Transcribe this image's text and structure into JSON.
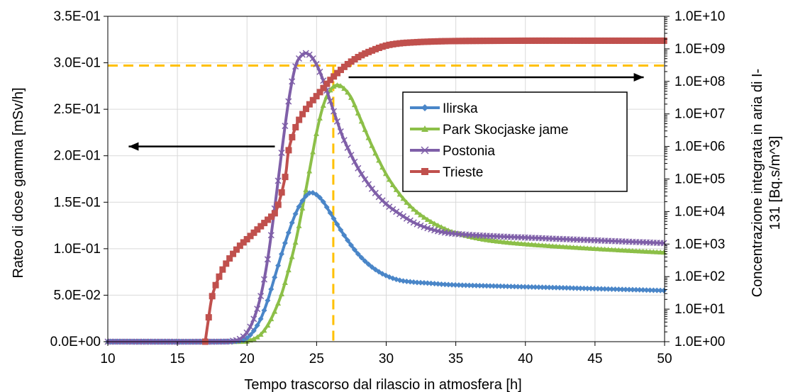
{
  "chart_data": {
    "type": "line",
    "xlabel": "Tempo trascorso dal rilascio in atmosfera [h]",
    "ylabel": "Rateo di dose gamma  [mSv/h]",
    "y2label_line1": "Concentrazione integrata in aria di I-",
    "y2label_line2": "131 [Bq.s/m^3]",
    "xlim": [
      10,
      50
    ],
    "ylim": [
      0,
      0.35
    ],
    "y2lim_log10": [
      0,
      10
    ],
    "y2scale": "log",
    "grid": true,
    "legend_position": "right-middle",
    "x_ticks": [
      "10",
      "15",
      "20",
      "25",
      "30",
      "35",
      "40",
      "45",
      "50"
    ],
    "y_ticks": [
      "0.0E+00",
      "5.0E-02",
      "1.0E-01",
      "1.5E-01",
      "2.0E-01",
      "2.5E-01",
      "3.0E-01",
      "3.5E-01"
    ],
    "y2_ticks": [
      "1.0E+00",
      "1.0E+01",
      "1.0E+02",
      "1.0E+03",
      "1.0E+04",
      "1.0E+05",
      "1.0E+06",
      "1.0E+07",
      "1.0E+08",
      "1.0E+09",
      "1.0E+10"
    ],
    "reference_lines": {
      "hline_y": 0.297,
      "vline_x": 26.2,
      "color": "#ffc000"
    },
    "arrows": [
      {
        "direction": "left",
        "axis": "primary",
        "y": 0.21,
        "x_from": 22,
        "x_to": 11.5
      },
      {
        "direction": "right",
        "axis": "secondary",
        "y": 0.28,
        "x_from": 27.3,
        "x_to": 48.5
      }
    ],
    "series": [
      {
        "name": "Ilirska",
        "axis": "primary",
        "color": "#4a86c8",
        "marker": "diamond",
        "x": [
          10,
          18,
          19.5,
          20,
          20.5,
          21,
          21.5,
          22,
          22.5,
          23,
          23.5,
          24,
          24.5,
          25,
          25.5,
          26,
          27,
          28,
          29,
          30,
          31,
          32,
          33,
          35,
          40,
          45,
          50
        ],
        "y": [
          0,
          0,
          0.001,
          0.004,
          0.012,
          0.025,
          0.045,
          0.07,
          0.095,
          0.118,
          0.138,
          0.152,
          0.16,
          0.158,
          0.15,
          0.138,
          0.114,
          0.094,
          0.08,
          0.071,
          0.066,
          0.064,
          0.063,
          0.061,
          0.059,
          0.057,
          0.055
        ]
      },
      {
        "name": "Park Skocjaske jame",
        "axis": "primary",
        "color": "#8cbf48",
        "marker": "triangle",
        "x": [
          10,
          19,
          20,
          20.5,
          21,
          21.5,
          22,
          22.5,
          23,
          23.5,
          24,
          24.5,
          25,
          25.5,
          26,
          26.5,
          27,
          27.5,
          28,
          29,
          30,
          31,
          32,
          33,
          34,
          35,
          37,
          40,
          45,
          50
        ],
        "y": [
          0,
          0,
          0.001,
          0.003,
          0.008,
          0.018,
          0.033,
          0.052,
          0.078,
          0.108,
          0.145,
          0.185,
          0.225,
          0.255,
          0.271,
          0.276,
          0.272,
          0.262,
          0.245,
          0.21,
          0.18,
          0.158,
          0.142,
          0.131,
          0.123,
          0.117,
          0.11,
          0.105,
          0.1,
          0.096
        ]
      },
      {
        "name": "Postonia",
        "axis": "primary",
        "color": "#7f5fa8",
        "marker": "x",
        "x": [
          10,
          18,
          19,
          19.5,
          20,
          20.5,
          21,
          21.5,
          22,
          22.5,
          23,
          23.5,
          24,
          24.3,
          24.6,
          25,
          25.5,
          26,
          26.5,
          27,
          28,
          29,
          30,
          31,
          32,
          33,
          34,
          35,
          37,
          40,
          45,
          50
        ],
        "y": [
          0,
          0,
          0.001,
          0.003,
          0.01,
          0.025,
          0.05,
          0.09,
          0.145,
          0.205,
          0.26,
          0.297,
          0.309,
          0.31,
          0.307,
          0.298,
          0.28,
          0.258,
          0.236,
          0.216,
          0.186,
          0.164,
          0.148,
          0.137,
          0.128,
          0.122,
          0.118,
          0.116,
          0.114,
          0.112,
          0.109,
          0.106
        ]
      },
      {
        "name": "Trieste",
        "axis": "secondary",
        "color": "#c0504d",
        "marker": "square",
        "x": [
          17,
          17.2,
          17.5,
          18,
          18.5,
          19,
          19.5,
          20,
          20.5,
          21,
          21.5,
          22,
          22.2,
          22.5,
          22.8,
          23,
          23.5,
          24,
          24.5,
          25,
          25.5,
          26,
          27,
          28,
          29,
          30,
          31,
          32,
          33,
          35,
          40,
          45,
          50
        ],
        "y_log10": [
          0,
          0.6,
          1.4,
          2.0,
          2.4,
          2.7,
          2.95,
          3.15,
          3.35,
          3.55,
          3.75,
          3.95,
          4.15,
          4.6,
          5.2,
          5.9,
          6.6,
          7.0,
          7.3,
          7.55,
          7.8,
          8.05,
          8.45,
          8.75,
          8.95,
          9.1,
          9.17,
          9.2,
          9.22,
          9.24,
          9.25,
          9.25,
          9.25
        ]
      }
    ]
  }
}
